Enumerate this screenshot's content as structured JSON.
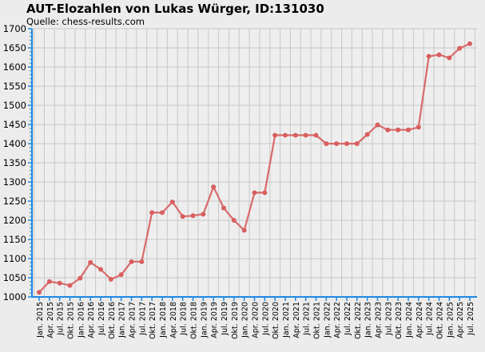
{
  "page": {
    "title": "AUT-Elozahlen von Lukas Würger, ID:131030",
    "source": "Quelle: chess-results.com"
  },
  "chart_data": {
    "type": "line",
    "title": "AUT-Elozahlen von Lukas Würger, ID:131030",
    "subtitle": "Quelle: chess-results.com",
    "xlabel": "",
    "ylabel": "",
    "ylim": [
      1000,
      1700
    ],
    "y_ticks": [
      1000,
      1050,
      1100,
      1150,
      1200,
      1250,
      1300,
      1350,
      1400,
      1450,
      1500,
      1550,
      1600,
      1650,
      1700
    ],
    "grid": true,
    "legend": "none",
    "colors": {
      "line": "#d96a6a",
      "marker": "#d85f5f",
      "axis": "#1e88e5",
      "grid": "#c8c8c8",
      "plot_bg": "#eeeeee"
    },
    "categories": [
      "Jan. 2015",
      "Apr. 2015",
      "Jul. 2015",
      "Okt. 2015",
      "Jan. 2016",
      "Apr. 2016",
      "Jul. 2016",
      "Okt. 2016",
      "Jan. 2017",
      "Apr. 2017",
      "Jul. 2017",
      "Okt. 2017",
      "Jan. 2018",
      "Apr. 2018",
      "Jul. 2018",
      "Okt. 2018",
      "Jan. 2019",
      "Apr. 2019",
      "Jul. 2019",
      "Okt. 2019",
      "Jan. 2020",
      "Apr. 2020",
      "Jul. 2020",
      "Okt. 2020",
      "Jan. 2021",
      "Apr. 2021",
      "Jul. 2021",
      "Okt. 2021",
      "Jan. 2022",
      "Apr. 2022",
      "Jul. 2022",
      "Okt. 2022",
      "Jan. 2023",
      "Apr. 2023",
      "Jul. 2023",
      "Okt. 2023",
      "Jan. 2024",
      "Apr. 2024",
      "Jul. 2024",
      "Okt. 2024",
      "Jan. 2025",
      "Apr. 2025",
      "Jul. 2025"
    ],
    "series": [
      {
        "values": [
          1012,
          1040,
          1036,
          1030,
          1049,
          1090,
          1072,
          1046,
          1058,
          1092,
          1092,
          1220,
          1220,
          1248,
          1210,
          1212,
          1216,
          1287,
          1232,
          1200,
          1174,
          1272,
          1272,
          1422,
          1422,
          1422,
          1422,
          1422,
          1400,
          1400,
          1400,
          1400,
          1424,
          1449,
          1436,
          1436,
          1436,
          1443,
          1628,
          1632,
          1624,
          1649,
          1661
        ]
      }
    ]
  }
}
